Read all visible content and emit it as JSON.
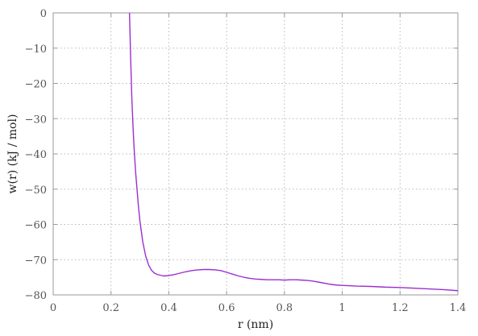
{
  "chart_data": {
    "type": "line",
    "title": "",
    "xlabel": "r (nm)",
    "ylabel": "w(r) (kJ / mol)",
    "xlim": [
      0,
      1.4
    ],
    "ylim": [
      -80,
      0
    ],
    "xticks": [
      0,
      0.2,
      0.4,
      0.6,
      0.8,
      1.0,
      1.2,
      1.4
    ],
    "xtick_labels": [
      "0",
      "0.2",
      "0.4",
      "0.6",
      "0.8",
      "1",
      "1.2",
      "1.4"
    ],
    "yticks": [
      0,
      -10,
      -20,
      -30,
      -40,
      -50,
      -60,
      -70,
      -80
    ],
    "ytick_labels": [
      "0",
      "−10",
      "−20",
      "−30",
      "−40",
      "−50",
      "−60",
      "−70",
      "−80"
    ],
    "grid": true,
    "series": [
      {
        "color": "#9b2fd1",
        "x": [
          0.264,
          0.268,
          0.272,
          0.276,
          0.28,
          0.285,
          0.29,
          0.295,
          0.3,
          0.31,
          0.32,
          0.33,
          0.34,
          0.35,
          0.36,
          0.37,
          0.38,
          0.39,
          0.4,
          0.42,
          0.44,
          0.46,
          0.48,
          0.5,
          0.52,
          0.54,
          0.56,
          0.58,
          0.6,
          0.62,
          0.64,
          0.66,
          0.68,
          0.7,
          0.72,
          0.74,
          0.76,
          0.78,
          0.8,
          0.82,
          0.84,
          0.86,
          0.88,
          0.9,
          0.92,
          0.94,
          0.96,
          0.98,
          1.0,
          1.05,
          1.1,
          1.15,
          1.2,
          1.25,
          1.3,
          1.35,
          1.4
        ],
        "y": [
          0,
          -13,
          -24,
          -32,
          -38.5,
          -45,
          -50,
          -55,
          -59,
          -65,
          -69,
          -71.5,
          -73,
          -73.8,
          -74.2,
          -74.4,
          -74.6,
          -74.6,
          -74.5,
          -74.2,
          -73.8,
          -73.4,
          -73.1,
          -72.9,
          -72.8,
          -72.8,
          -72.9,
          -73.1,
          -73.6,
          -74.1,
          -74.6,
          -75.0,
          -75.3,
          -75.5,
          -75.6,
          -75.7,
          -75.7,
          -75.7,
          -75.8,
          -75.7,
          -75.7,
          -75.8,
          -75.9,
          -76.1,
          -76.4,
          -76.7,
          -77.0,
          -77.2,
          -77.3,
          -77.5,
          -77.6,
          -77.8,
          -77.9,
          -78.1,
          -78.3,
          -78.5,
          -78.8
        ]
      }
    ]
  }
}
